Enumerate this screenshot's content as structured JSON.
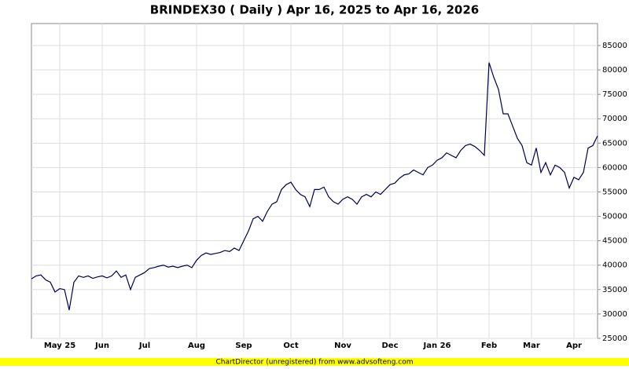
{
  "chart_data": {
    "type": "line",
    "title": "BRINDEX30 ( Daily ) Apr 16, 2025 to Apr 16, 2026",
    "footer": "ChartDirector (unregistered) from www.advsofteng.com",
    "categories": [
      null,
      null,
      null,
      null,
      null,
      null,
      "May 25",
      null,
      null,
      null,
      null,
      null,
      null,
      null,
      null,
      "Jun",
      null,
      null,
      null,
      null,
      null,
      null,
      null,
      null,
      "Jul",
      null,
      null,
      null,
      null,
      null,
      null,
      null,
      null,
      null,
      null,
      "Aug",
      null,
      null,
      null,
      null,
      null,
      null,
      null,
      null,
      null,
      "Sep",
      null,
      null,
      null,
      null,
      null,
      null,
      null,
      null,
      null,
      "Oct",
      null,
      null,
      null,
      null,
      null,
      null,
      null,
      null,
      null,
      null,
      "Nov",
      null,
      null,
      null,
      null,
      null,
      null,
      null,
      null,
      null,
      "Dec",
      null,
      null,
      null,
      null,
      null,
      null,
      null,
      null,
      null,
      "Jan 26",
      null,
      null,
      null,
      null,
      null,
      null,
      null,
      null,
      null,
      null,
      "Feb",
      null,
      null,
      null,
      null,
      null,
      null,
      null,
      null,
      "Mar",
      null,
      null,
      null,
      null,
      null,
      null,
      null,
      null,
      "Apr",
      null,
      null,
      null,
      null,
      null
    ],
    "values": [
      37200,
      37800,
      38000,
      37000,
      36500,
      34500,
      35200,
      35000,
      30800,
      36500,
      37800,
      37500,
      37800,
      37300,
      37600,
      37800,
      37400,
      37800,
      38800,
      37500,
      38000,
      35000,
      37500,
      38000,
      38500,
      39300,
      39500,
      39800,
      40000,
      39600,
      39800,
      39500,
      39800,
      40000,
      39500,
      41000,
      42000,
      42500,
      42200,
      42400,
      42600,
      43000,
      42800,
      43500,
      43000,
      45000,
      47000,
      49500,
      50000,
      49000,
      51000,
      52500,
      53000,
      55500,
      56500,
      57000,
      55500,
      54500,
      54000,
      52000,
      55500,
      55500,
      56000,
      54000,
      53000,
      52500,
      53500,
      54000,
      53500,
      52500,
      54000,
      54500,
      54000,
      55000,
      54500,
      55500,
      56500,
      56800,
      57800,
      58500,
      58700,
      59500,
      59000,
      58500,
      60000,
      60500,
      61500,
      62000,
      63000,
      62500,
      62000,
      63500,
      64500,
      64800,
      64300,
      63500,
      62500,
      81500,
      78500,
      76000,
      71000,
      71000,
      68500,
      66000,
      64500,
      61000,
      60500,
      64000,
      59000,
      61000,
      58500,
      60500,
      60000,
      59000,
      55800,
      58000,
      57500,
      59000,
      64000,
      64500,
      66500
    ],
    "color": "#000050",
    "ylim": [
      25000,
      89500
    ],
    "yticks": [
      25000,
      30000,
      35000,
      40000,
      45000,
      50000,
      55000,
      60000,
      65000,
      70000,
      75000,
      80000,
      85000
    ],
    "grid": true
  }
}
